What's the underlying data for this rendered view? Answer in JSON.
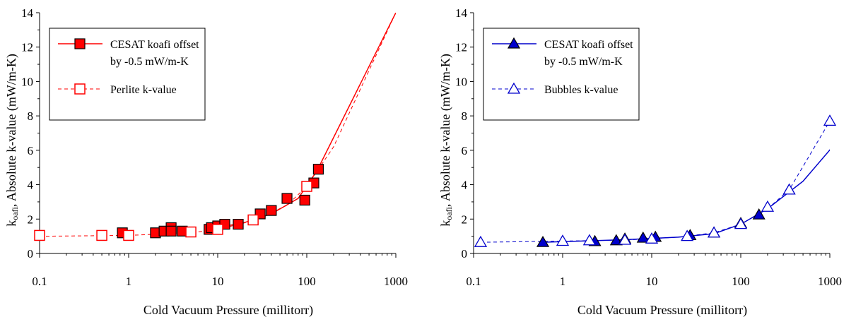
{
  "chart_data": [
    {
      "type": "scatter",
      "xscale": "log",
      "xlim": [
        0.1,
        1000
      ],
      "ylim": [
        0,
        14
      ],
      "xticks": [
        "0.1",
        "1",
        "10",
        "100",
        "1000"
      ],
      "yticks": [
        "0",
        "2",
        "4",
        "6",
        "8",
        "10",
        "12",
        "14"
      ],
      "xlabel": "Cold Vacuum Pressure (millitorr)",
      "ylabel_main": "k",
      "ylabel_sub": "oafi",
      "ylabel_rest": ", Absolute k-value (mW/m-K)",
      "grid": false,
      "legend_position": "top-left",
      "series": [
        {
          "name_line1": "CESAT koafi offset",
          "name_line2": "by -0.5 mW/m-K",
          "color": "#ff0000",
          "marker": "square-filled",
          "line": "solid",
          "x": [
            0.85,
            2.0,
            2.5,
            3.0,
            3.0,
            4.0,
            8.0,
            8.5,
            10.0,
            12.0,
            17.0,
            30.0,
            40.0,
            60.0,
            95.0,
            120.0,
            135.0
          ],
          "y": [
            1.2,
            1.2,
            1.3,
            1.5,
            1.3,
            1.3,
            1.4,
            1.5,
            1.6,
            1.7,
            1.7,
            2.3,
            2.5,
            3.2,
            3.1,
            4.1,
            4.9
          ],
          "fit_x": [
            10.0,
            20.0,
            40.0,
            80.0,
            130.0,
            1000.0
          ],
          "fit_y": [
            1.5,
            1.8,
            2.3,
            3.2,
            4.8,
            14.0
          ]
        },
        {
          "name": "Perlite k-value",
          "color": "#ff0000",
          "marker": "square-open",
          "line": "dashed",
          "x": [
            0.1,
            0.5,
            1.0,
            5.0,
            10.0,
            25.0,
            100.0
          ],
          "y": [
            1.05,
            1.05,
            1.05,
            1.25,
            1.4,
            1.95,
            3.9
          ],
          "fit_x": [
            0.1,
            1.0,
            5.0,
            10.0,
            25.0,
            60.0,
            100.0,
            200.0,
            1000.0
          ],
          "fit_y": [
            1.0,
            1.05,
            1.2,
            1.4,
            1.9,
            2.8,
            3.9,
            6.2,
            14.0
          ]
        }
      ]
    },
    {
      "type": "scatter",
      "xscale": "log",
      "xlim": [
        0.1,
        1000
      ],
      "ylim": [
        0,
        14
      ],
      "xticks": [
        "0.1",
        "1",
        "10",
        "100",
        "1000"
      ],
      "yticks": [
        "0",
        "2",
        "4",
        "6",
        "8",
        "10",
        "12",
        "14"
      ],
      "xlabel": "Cold Vacuum Pressure (millitorr)",
      "ylabel_main": "k",
      "ylabel_sub": "oafi",
      "ylabel_rest": ", Absolute k-value (mW/m-K)",
      "grid": false,
      "legend_position": "top-left",
      "series": [
        {
          "name_line1": "CESAT koafi offset",
          "name_line2": "by -0.5 mW/m-K",
          "color": "#0000cc",
          "marker": "triangle-filled",
          "line": "solid",
          "x": [
            0.6,
            2.3,
            4.0,
            5.0,
            8.0,
            11.0,
            27.0,
            50.0,
            100.0,
            160.0
          ],
          "y": [
            0.65,
            0.7,
            0.75,
            0.85,
            0.9,
            0.95,
            1.05,
            1.2,
            1.75,
            2.25
          ],
          "fit_x": [
            0.6,
            5.0,
            20.0,
            50.0,
            100.0,
            200.0,
            500.0,
            1200.0
          ],
          "fit_y": [
            0.65,
            0.8,
            0.95,
            1.15,
            1.7,
            2.6,
            4.2,
            6.5
          ]
        },
        {
          "name": "Bubbles k-value",
          "color": "#0000cc",
          "marker": "triangle-open",
          "line": "dashed",
          "x": [
            0.12,
            1.0,
            2.0,
            5.0,
            10.0,
            25.0,
            50.0,
            100.0,
            200.0,
            350.0,
            1000.0
          ],
          "y": [
            0.65,
            0.72,
            0.75,
            0.78,
            0.85,
            1.0,
            1.2,
            1.7,
            2.7,
            3.7,
            7.7
          ],
          "fit_x": [
            0.12,
            1.0,
            5.0,
            20.0,
            50.0,
            100.0,
            200.0,
            350.0,
            1000.0,
            1200.0
          ],
          "fit_y": [
            0.65,
            0.72,
            0.78,
            0.95,
            1.2,
            1.7,
            2.6,
            3.7,
            7.7,
            9.0
          ]
        }
      ]
    }
  ]
}
